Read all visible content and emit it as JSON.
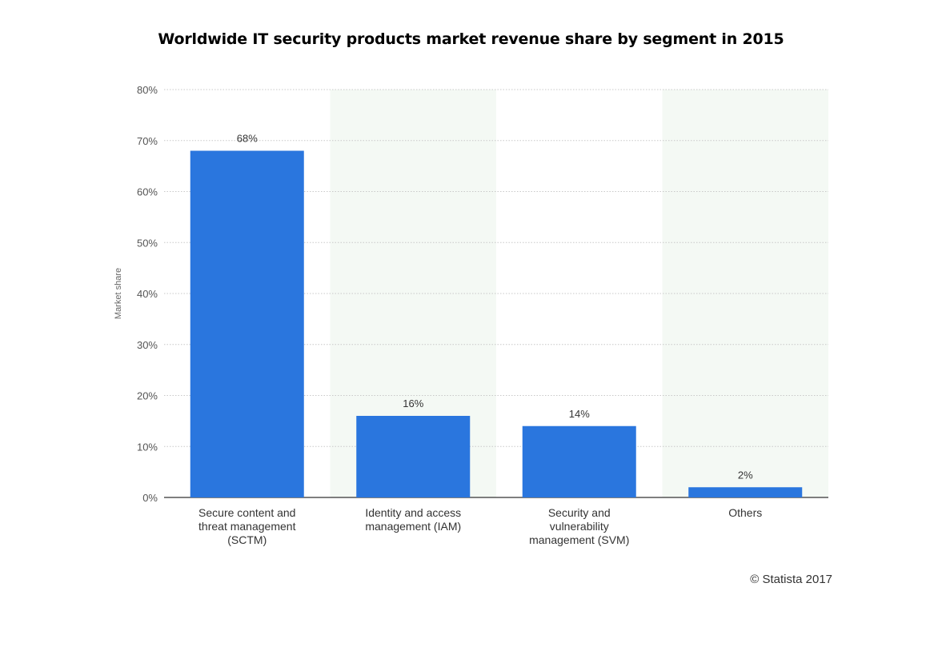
{
  "chart_data": {
    "type": "bar",
    "title": "Worldwide IT security products market revenue share by segment in 2015",
    "xlabel": "",
    "ylabel": "Market share",
    "ylim": [
      0,
      80
    ],
    "yticks": [
      0,
      10,
      20,
      30,
      40,
      50,
      60,
      70,
      80
    ],
    "ytick_labels": [
      "0%",
      "10%",
      "20%",
      "30%",
      "40%",
      "50%",
      "60%",
      "70%",
      "80%"
    ],
    "categories": [
      [
        "Secure content and",
        "threat management",
        "(SCTM)"
      ],
      [
        "Identity and access",
        "management (IAM)"
      ],
      [
        "Security and",
        "vulnerability",
        "management (SVM)"
      ],
      [
        "Others"
      ]
    ],
    "values": [
      68,
      16,
      14,
      2
    ],
    "data_labels": [
      "68%",
      "16%",
      "14%",
      "2%"
    ],
    "grid": true,
    "bar_color": "#2a76de",
    "band_color": "#f4f9f4"
  },
  "credit": "© Statista 2017"
}
